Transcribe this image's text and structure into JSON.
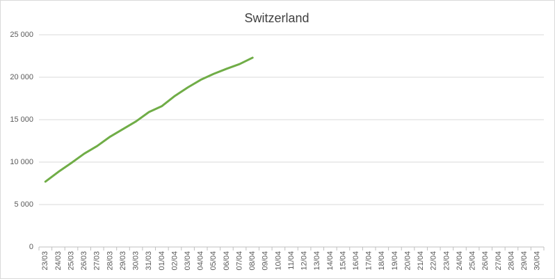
{
  "chart_data": {
    "type": "line",
    "title": "Switzerland",
    "categories": [
      "23/03",
      "24/03",
      "25/03",
      "26/03",
      "27/03",
      "28/03",
      "29/03",
      "30/03",
      "31/03",
      "01/04",
      "02/04",
      "03/04",
      "04/04",
      "05/04",
      "06/04",
      "07/04",
      "08/04",
      "09/04",
      "10/04",
      "11/04",
      "12/04",
      "13/04",
      "14/04",
      "15/04",
      "16/04",
      "17/04",
      "18/04",
      "19/04",
      "20/04",
      "21/04",
      "22/04",
      "23/04",
      "24/04",
      "25/04",
      "26/04",
      "27/04",
      "28/04",
      "29/04",
      "30/04"
    ],
    "series": [
      {
        "name": "Switzerland",
        "color": "#70ad47",
        "values": [
          7700,
          8850,
          9900,
          11000,
          11900,
          13000,
          13900,
          14800,
          15900,
          16600,
          17800,
          18800,
          19700,
          20400,
          21000,
          21550,
          22300,
          null,
          null,
          null,
          null,
          null,
          null,
          null,
          null,
          null,
          null,
          null,
          null,
          null,
          null,
          null,
          null,
          null,
          null,
          null,
          null,
          null,
          null
        ]
      }
    ],
    "ylim": [
      0,
      25000
    ],
    "yticks": [
      0,
      {
        "value": 5000,
        "label": "5 000"
      },
      {
        "value": 10000,
        "label": "10 000"
      },
      {
        "value": 15000,
        "label": "15 000"
      },
      {
        "value": 20000,
        "label": "20 000"
      },
      {
        "value": 25000,
        "label": "25 000"
      }
    ],
    "grid": true
  }
}
